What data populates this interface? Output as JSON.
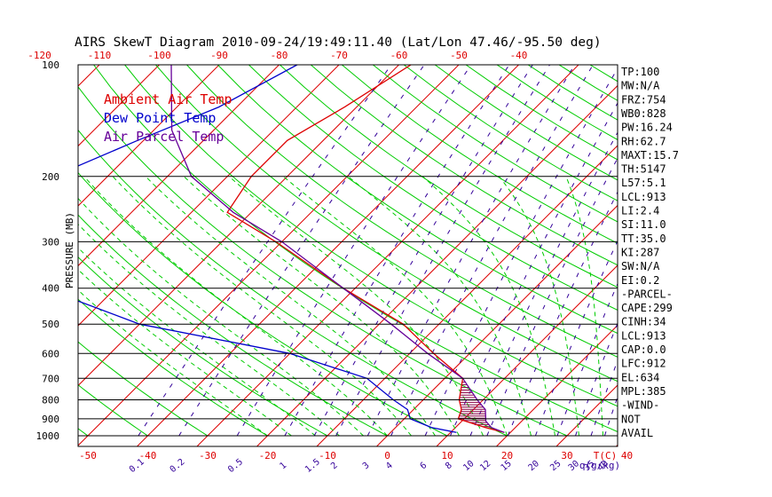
{
  "chart_data": {
    "type": "line",
    "title": "AIRS SkewT Diagram 2010-09-24/19:49:11.40 (Lat/Lon 47.46/-95.50 deg)",
    "ylabel": "PRESSURE (MB)",
    "xlabel": "T(C)",
    "mixing_unit": "q(g/kg)",
    "pressure_ticks": [
      100,
      200,
      300,
      400,
      500,
      600,
      700,
      800,
      900,
      1000
    ],
    "top_temp_ticks": [
      -120,
      -110,
      -100,
      -90,
      -80,
      -70,
      -60,
      -50,
      -40
    ],
    "bottom_temp_ticks": [
      -50,
      -40,
      -30,
      -20,
      -10,
      0,
      10,
      20,
      30,
      40
    ],
    "mixing_ratio_ticks": [
      "0.1",
      "0.2",
      "0.5",
      "1",
      "1.5",
      "2",
      "3",
      "4",
      "6",
      "8",
      "10",
      "12",
      "15",
      "20",
      "25",
      "30",
      "35",
      "40"
    ],
    "legend": [
      {
        "name": "Ambient Air Temp",
        "color": "#dd0000"
      },
      {
        "name": "Dew Point Temp",
        "color": "#0000cc"
      },
      {
        "name": "Air Parcel Temp",
        "color": "#660099"
      }
    ],
    "series": [
      {
        "name": "Ambient Air Temp",
        "color": "#dd0000",
        "points": [
          {
            "p": 100,
            "t": -58
          },
          {
            "p": 130,
            "t": -62
          },
          {
            "p": 160,
            "t": -66
          },
          {
            "p": 200,
            "t": -66
          },
          {
            "p": 250,
            "t": -64
          },
          {
            "p": 300,
            "t": -51
          },
          {
            "p": 400,
            "t": -32
          },
          {
            "p": 500,
            "t": -16
          },
          {
            "p": 600,
            "t": -6
          },
          {
            "p": 700,
            "t": 3
          },
          {
            "p": 800,
            "t": 6
          },
          {
            "p": 850,
            "t": 8
          },
          {
            "p": 900,
            "t": 9
          },
          {
            "p": 950,
            "t": 15
          },
          {
            "p": 980,
            "t": 19
          }
        ]
      },
      {
        "name": "Dew Point Temp",
        "color": "#0000cc",
        "points": [
          {
            "p": 100,
            "t": -77
          },
          {
            "p": 130,
            "t": -83
          },
          {
            "p": 160,
            "t": -91
          },
          {
            "p": 200,
            "t": -99
          },
          {
            "p": 250,
            "t": -108
          },
          {
            "p": 300,
            "t": -100
          },
          {
            "p": 400,
            "t": -82
          },
          {
            "p": 500,
            "t": -60
          },
          {
            "p": 600,
            "t": -30
          },
          {
            "p": 700,
            "t": -13
          },
          {
            "p": 800,
            "t": -5
          },
          {
            "p": 850,
            "t": -1
          },
          {
            "p": 900,
            "t": 1
          },
          {
            "p": 950,
            "t": 6
          },
          {
            "p": 980,
            "t": 11
          }
        ]
      },
      {
        "name": "Air Parcel Temp",
        "color": "#660099",
        "points": [
          {
            "p": 100,
            "t": -98
          },
          {
            "p": 150,
            "t": -87
          },
          {
            "p": 200,
            "t": -76
          },
          {
            "p": 250,
            "t": -63
          },
          {
            "p": 300,
            "t": -50
          },
          {
            "p": 400,
            "t": -32
          },
          {
            "p": 500,
            "t": -18
          },
          {
            "p": 600,
            "t": -7
          },
          {
            "p": 700,
            "t": 3
          },
          {
            "p": 800,
            "t": 9
          },
          {
            "p": 850,
            "t": 12
          },
          {
            "p": 913,
            "t": 14
          },
          {
            "p": 950,
            "t": 16
          },
          {
            "p": 980,
            "t": 19
          }
        ]
      }
    ],
    "indices": [
      "TP:100",
      "MW:N/A",
      "FRZ:754",
      "WB0:828",
      "PW:16.24",
      "RH:62.7",
      "MAXT:15.7",
      "TH:5147",
      "L57:5.1",
      "LCL:913",
      "LI:2.4",
      "SI:11.0",
      "TT:35.0",
      "KI:287",
      "SW:N/A",
      "EI:0.2",
      "-PARCEL-",
      "CAPE:299",
      "CINH:34",
      "LCL:913",
      "CAP:0.0",
      "LFC:912",
      "EL:634",
      "MPL:385",
      "-WIND-",
      "NOT",
      "AVAIL"
    ],
    "colors": {
      "isotherm": "#dd0000",
      "dry_adiabat": "#00cc00",
      "moist_adiabat": "#00cc00",
      "mixing_ratio": "#330099",
      "isobar": "#000000",
      "hatch": "#880044"
    }
  }
}
